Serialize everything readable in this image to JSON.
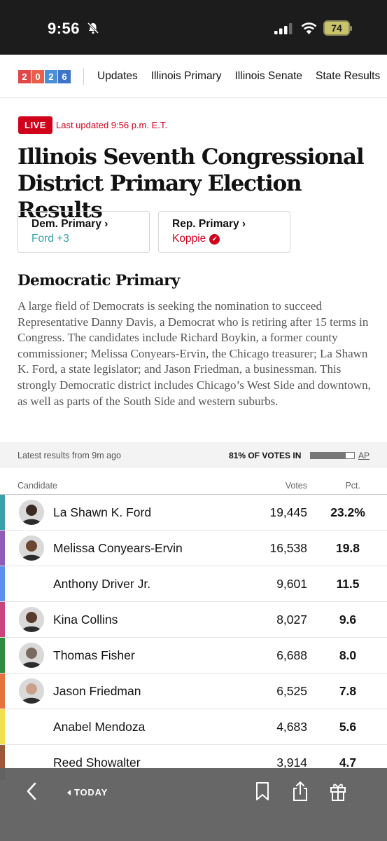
{
  "status_bar": {
    "time": "9:56",
    "battery": "74"
  },
  "nav": {
    "logo_digits": [
      "2",
      "0",
      "2",
      "6"
    ],
    "links": [
      "Updates",
      "Illinois Primary",
      "Illinois Senate",
      "State Results"
    ]
  },
  "header": {
    "live_badge": "LIVE",
    "updated": "Last updated 9:56 p.m. E.T.",
    "title": "Illinois Seventh Congressional District Primary Election Results"
  },
  "cards": {
    "dem": {
      "title": "Dem. Primary ›",
      "status": "Ford +3"
    },
    "rep": {
      "title": "Rep. Primary ›",
      "status": "Koppie"
    }
  },
  "section": {
    "title": "Democratic Primary",
    "description": "A large field of Democrats is seeking the nomination to succeed Representative Danny Davis, a Democrat who is retiring after 15 terms in Congress. The candidates include Richard Boykin, a former county commissioner; Melissa Conyears-Ervin, the Chicago treasurer; La Shawn K. Ford, a state legislator; and Jason Friedman, a businessman. This strongly Democratic district includes Chicago’s West Side and downtown, as well as parts of the South Side and western suburbs."
  },
  "results_meta": {
    "latest": "Latest results from 9m ago",
    "reporting": "81% OF VOTES IN",
    "reporting_fraction": 0.81,
    "source": "AP"
  },
  "table": {
    "headers": {
      "candidate": "Candidate",
      "votes": "Votes",
      "pct": "Pct."
    },
    "rows": [
      {
        "name": "La Shawn K. Ford",
        "votes": "19,445",
        "pct": "23.2%",
        "color": "#3aa0ab",
        "photo": true,
        "skin": "#3b2a22"
      },
      {
        "name": "Melissa Conyears-Ervin",
        "votes": "16,538",
        "pct": "19.8",
        "color": "#8e5bb5",
        "photo": true,
        "skin": "#6b4630"
      },
      {
        "name": "Anthony Driver Jr.",
        "votes": "9,601",
        "pct": "11.5",
        "color": "#5b8ff0",
        "photo": false
      },
      {
        "name": "Kina Collins",
        "votes": "8,027",
        "pct": "9.6",
        "color": "#c8467a",
        "photo": true,
        "skin": "#5a3a2a"
      },
      {
        "name": "Thomas Fisher",
        "votes": "6,688",
        "pct": "8.0",
        "color": "#2e8c3c",
        "photo": true,
        "skin": "#7a6a62"
      },
      {
        "name": "Jason Friedman",
        "votes": "6,525",
        "pct": "7.8",
        "color": "#e5733c",
        "photo": true,
        "skin": "#c9a18a"
      },
      {
        "name": "Anabel Mendoza",
        "votes": "4,683",
        "pct": "5.6",
        "color": "#f1df4c",
        "photo": false
      },
      {
        "name": "Reed Showalter",
        "votes": "3,914",
        "pct": "4.7",
        "color": "#9a5a3a",
        "photo": false
      }
    ]
  },
  "toolbar": {
    "today": "TODAY"
  }
}
